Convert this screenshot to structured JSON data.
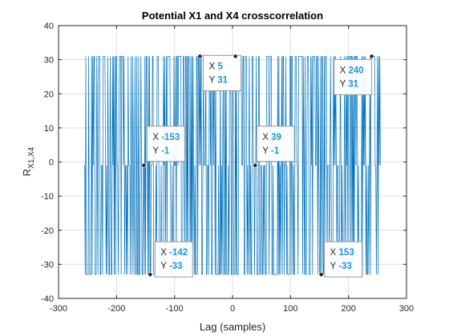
{
  "chart_data": {
    "type": "line",
    "title": "Potential X1 and X4 crosscorrelation",
    "xlabel": "Lag (samples)",
    "ylabel_main": "R",
    "ylabel_sub": "X1,X4",
    "xlim": [
      -300,
      300
    ],
    "ylim": [
      -40,
      40
    ],
    "x_ticks": [
      -300,
      -200,
      -100,
      0,
      100,
      200,
      300
    ],
    "y_ticks": [
      -40,
      -30,
      -20,
      -10,
      0,
      10,
      20,
      30,
      40
    ],
    "grid": true,
    "series": [
      {
        "color": "#0072BD",
        "lag_range": [
          -255,
          255
        ],
        "levels": [
          31,
          -1,
          -33
        ],
        "description_values": "binary-sequence crosscorrelation alternating among 31, -1 and -33"
      }
    ],
    "datatips": [
      {
        "x": -56,
        "y": 31,
        "x_label": "X",
        "y_label": "Y",
        "x_value": "-56",
        "y_value": "31"
      },
      {
        "x": 5,
        "y": 31,
        "x_label": "X",
        "y_label": "Y",
        "x_value": "5",
        "y_value": "31"
      },
      {
        "x": 240,
        "y": 31,
        "x_label": "X",
        "y_label": "Y",
        "x_value": "240",
        "y_value": "31"
      },
      {
        "x": -153,
        "y": -1,
        "x_label": "X",
        "y_label": "Y",
        "x_value": "-153",
        "y_value": "-1"
      },
      {
        "x": 39,
        "y": -1,
        "x_label": "X",
        "y_label": "Y",
        "x_value": "39",
        "y_value": "-1"
      },
      {
        "x": -142,
        "y": -33,
        "x_label": "X",
        "y_label": "Y",
        "x_value": "-142",
        "y_value": "-33"
      },
      {
        "x": 153,
        "y": -33,
        "x_label": "X",
        "y_label": "Y",
        "x_value": "153",
        "y_value": "-33"
      }
    ]
  }
}
